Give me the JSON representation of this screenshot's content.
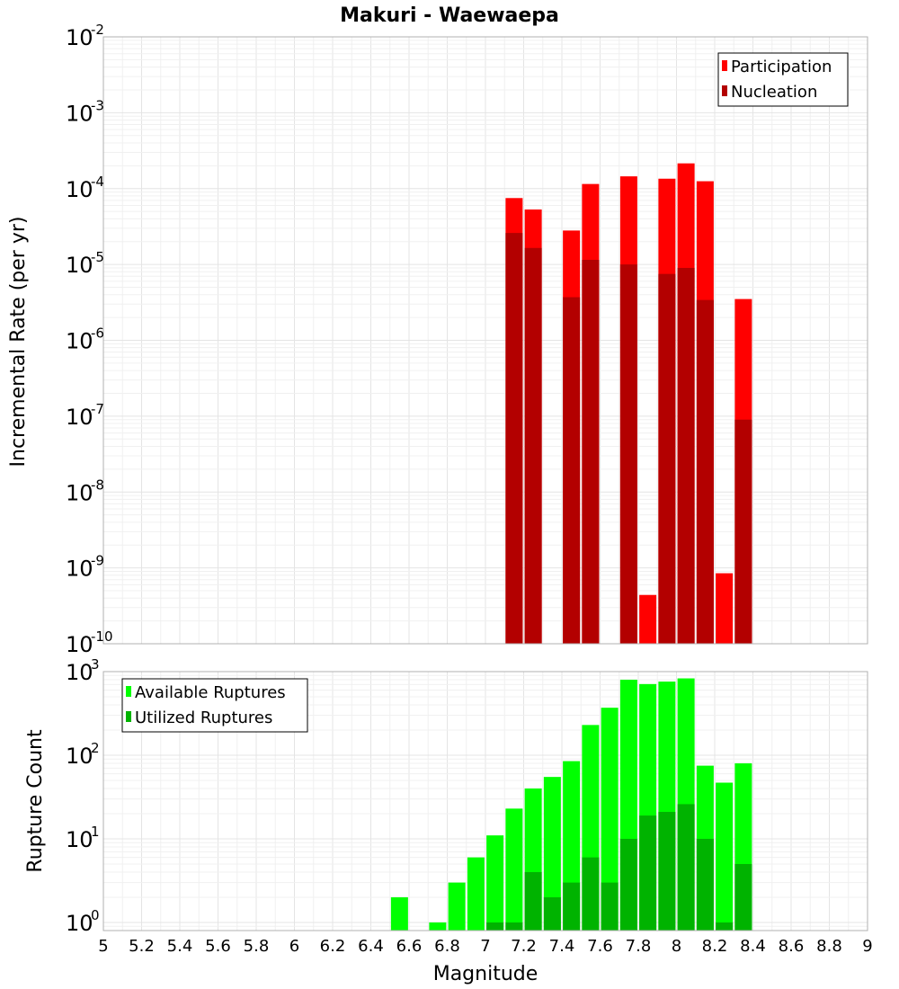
{
  "chart_data": [
    {
      "type": "bar",
      "title": "Makuri - Waewaepa",
      "xlabel": "",
      "ylabel": "Incremental Rate (per yr)",
      "yscale": "log",
      "ylim": [
        1e-10,
        0.01
      ],
      "ytick_exponents": [
        -2,
        -3,
        -4,
        -5,
        -6,
        -7,
        -8,
        -9,
        -10
      ],
      "xlim": [
        5,
        9
      ],
      "legend_position": "top-right",
      "x": [
        7.15,
        7.25,
        7.45,
        7.55,
        7.75,
        7.85,
        7.95,
        8.05,
        8.15,
        8.25,
        8.35
      ],
      "series": [
        {
          "name": "Participation",
          "color": "#ff0000",
          "values": [
            7.5e-05,
            5.3e-05,
            2.8e-05,
            0.000115,
            0.000145,
            4.4e-10,
            0.000135,
            0.000215,
            0.000125,
            8.5e-10,
            3.5e-06
          ]
        },
        {
          "name": "Nucleation",
          "color": "#b30000",
          "values": [
            2.6e-05,
            1.65e-05,
            3.7e-06,
            1.15e-05,
            1e-05,
            null,
            7.5e-06,
            9e-06,
            3.4e-06,
            null,
            9e-08
          ]
        }
      ]
    },
    {
      "type": "bar",
      "xlabel": "Magnitude",
      "ylabel": "Rupture Count",
      "yscale": "log",
      "ylim": [
        0.8,
        1000
      ],
      "ytick_exponents": [
        3,
        2,
        1,
        0
      ],
      "xlim": [
        5,
        9
      ],
      "xticks": [
        "5",
        "5.2",
        "5.4",
        "5.6",
        "5.8",
        "6",
        "6.2",
        "6.4",
        "6.6",
        "6.8",
        "7",
        "7.2",
        "7.4",
        "7.6",
        "7.8",
        "8",
        "8.2",
        "8.4",
        "8.6",
        "8.8",
        "9"
      ],
      "legend_position": "top-left",
      "x": [
        6.55,
        6.75,
        6.85,
        6.95,
        7.05,
        7.15,
        7.25,
        7.35,
        7.45,
        7.55,
        7.65,
        7.75,
        7.85,
        7.95,
        8.05,
        8.15,
        8.25,
        8.35
      ],
      "series": [
        {
          "name": "Available Ruptures",
          "color": "#00ff00",
          "values": [
            2,
            1,
            3,
            6,
            11,
            23,
            40,
            55,
            85,
            230,
            370,
            800,
            710,
            760,
            830,
            75,
            47,
            80
          ]
        },
        {
          "name": "Utilized Ruptures",
          "color": "#00b300",
          "values": [
            null,
            null,
            null,
            null,
            1,
            1,
            4,
            2,
            3,
            6,
            3,
            10,
            19,
            21,
            26,
            10,
            1,
            5
          ]
        }
      ]
    }
  ]
}
